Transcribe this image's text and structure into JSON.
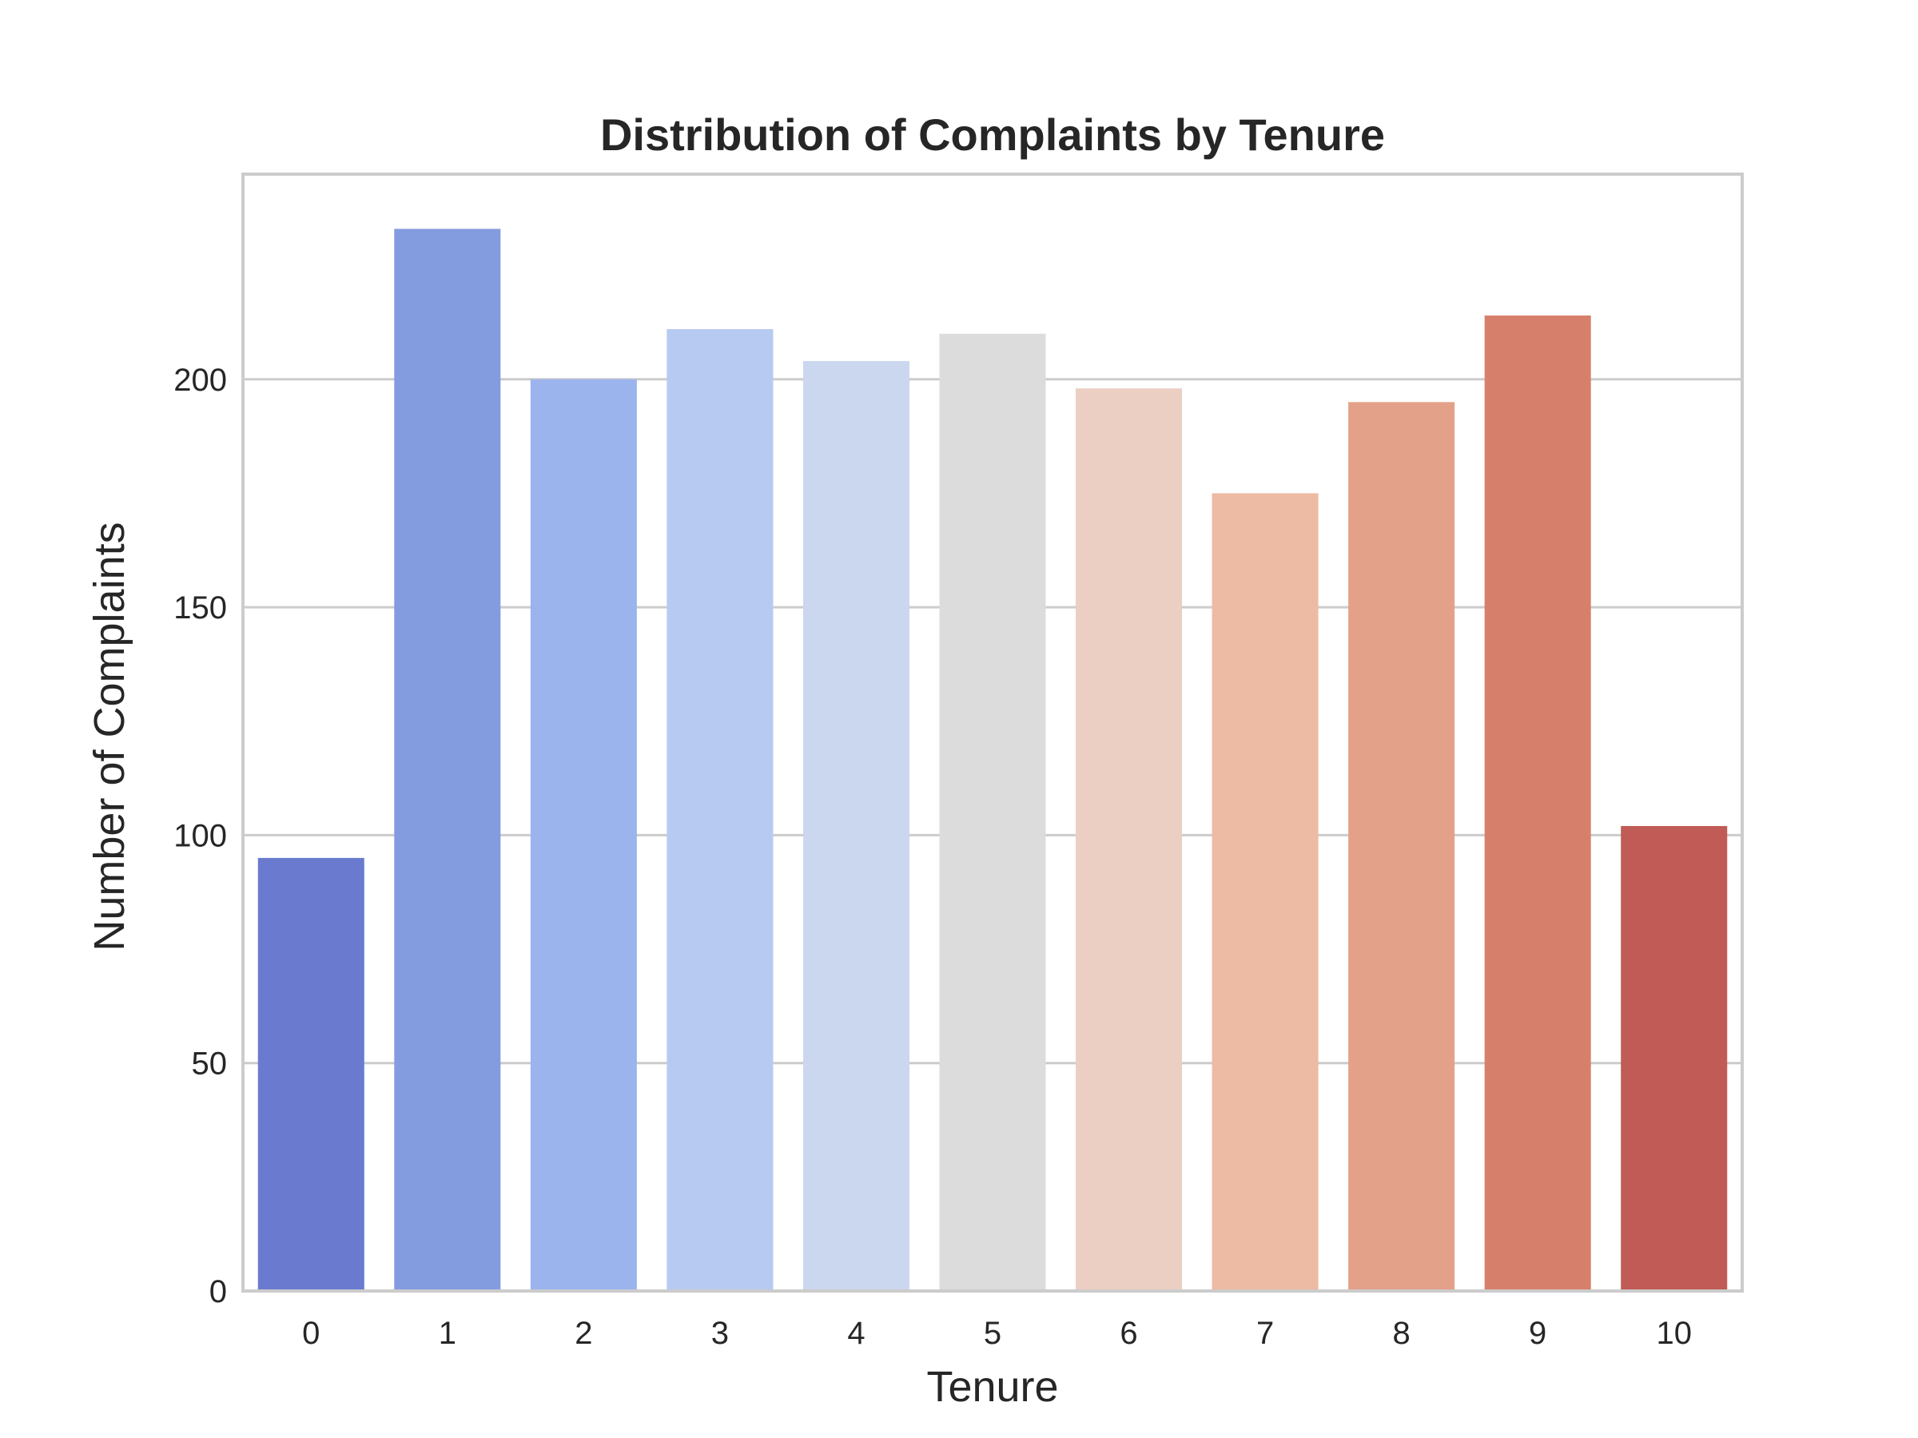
{
  "chart_data": {
    "type": "bar",
    "title": "Distribution of Complaints by Tenure",
    "xlabel": "Tenure",
    "ylabel": "Number of Complaints",
    "categories": [
      "0",
      "1",
      "2",
      "3",
      "4",
      "5",
      "6",
      "7",
      "8",
      "9",
      "10"
    ],
    "values": [
      95,
      233,
      200,
      211,
      204,
      210,
      198,
      175,
      195,
      214,
      102
    ],
    "colors": [
      "#6a7bcf",
      "#839bdf",
      "#9cb4ed",
      "#b7caf1",
      "#cbd7ee",
      "#dcdcdc",
      "#eacfc2",
      "#edbaa4",
      "#e4a189",
      "#d6806c",
      "#c05b55"
    ],
    "yticks": [
      0,
      50,
      100,
      150,
      200
    ],
    "ylim": [
      0,
      245
    ],
    "grid": true,
    "legend": "none"
  }
}
